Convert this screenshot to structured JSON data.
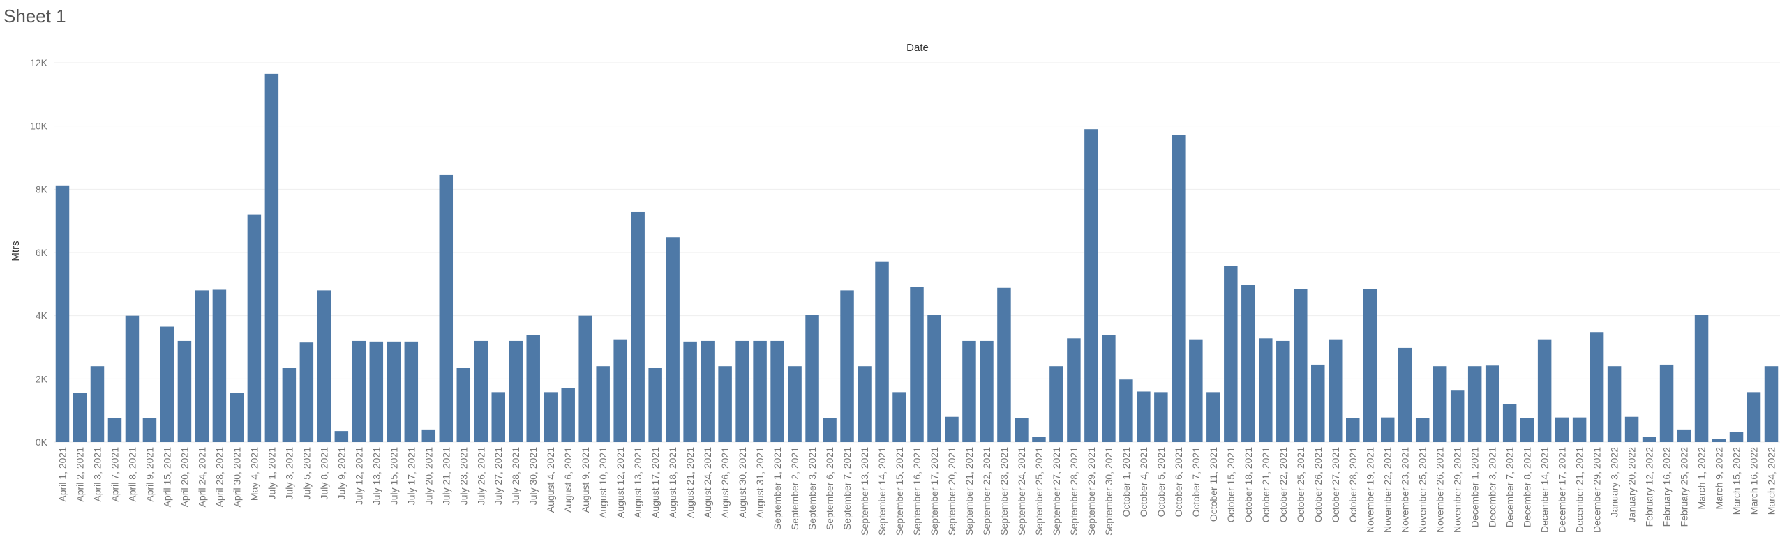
{
  "sheet": {
    "title": "Sheet 1"
  },
  "chart_data": {
    "type": "bar",
    "title": "",
    "xlabel": "Date",
    "ylabel": "Mtrs",
    "ylim": [
      0,
      12000
    ],
    "yticks": [
      {
        "value": 0,
        "label": "0K"
      },
      {
        "value": 2000,
        "label": "2K"
      },
      {
        "value": 4000,
        "label": "4K"
      },
      {
        "value": 6000,
        "label": "6K"
      },
      {
        "value": 8000,
        "label": "8K"
      },
      {
        "value": 10000,
        "label": "10K"
      },
      {
        "value": 12000,
        "label": "12K"
      }
    ],
    "bar_color": "#4e79a7",
    "grid": true,
    "categories": [
      "April 1, 2021",
      "April 2, 2021",
      "April 3, 2021",
      "April 7, 2021",
      "April 8, 2021",
      "April 9, 2021",
      "April 15, 2021",
      "April 20, 2021",
      "April 24, 2021",
      "April 28, 2021",
      "April 30, 2021",
      "May 4, 2021",
      "July 1, 2021",
      "July 3, 2021",
      "July 5, 2021",
      "July 8, 2021",
      "July 9, 2021",
      "July 12, 2021",
      "July 13, 2021",
      "July 15, 2021",
      "July 17, 2021",
      "July 20, 2021",
      "July 21, 2021",
      "July 23, 2021",
      "July 26, 2021",
      "July 27, 2021",
      "July 28, 2021",
      "July 30, 2021",
      "August 4, 2021",
      "August 6, 2021",
      "August 9, 2021",
      "August 10, 2021",
      "August 12, 2021",
      "August 13, 2021",
      "August 17, 2021",
      "August 18, 2021",
      "August 21, 2021",
      "August 24, 2021",
      "August 26, 2021",
      "August 30, 2021",
      "August 31, 2021",
      "September 1, 2021",
      "September 2, 2021",
      "September 3, 2021",
      "September 6, 2021",
      "September 7, 2021",
      "September 13, 2021",
      "September 14, 2021",
      "September 15, 2021",
      "September 16, 2021",
      "September 17, 2021",
      "September 20, 2021",
      "September 21, 2021",
      "September 22, 2021",
      "September 23, 2021",
      "September 24, 2021",
      "September 25, 2021",
      "September 27, 2021",
      "September 28, 2021",
      "September 29, 2021",
      "September 30, 2021",
      "October 1, 2021",
      "October 4, 2021",
      "October 5, 2021",
      "October 6, 2021",
      "October 7, 2021",
      "October 11, 2021",
      "October 15, 2021",
      "October 18, 2021",
      "October 21, 2021",
      "October 22, 2021",
      "October 25, 2021",
      "October 26, 2021",
      "October 27, 2021",
      "October 28, 2021",
      "November 19, 2021",
      "November 22, 2021",
      "November 23, 2021",
      "November 25, 2021",
      "November 26, 2021",
      "November 29, 2021",
      "December 1, 2021",
      "December 3, 2021",
      "December 7, 2021",
      "December 8, 2021",
      "December 14, 2021",
      "December 17, 2021",
      "December 21, 2021",
      "December 29, 2021",
      "January 3, 2022",
      "January 20, 2022",
      "February 12, 2022",
      "February 16, 2022",
      "February 25, 2022",
      "March 1, 2022",
      "March 9, 2022",
      "March 15, 2022",
      "March 16, 2022",
      "March 24, 2022"
    ],
    "values": [
      8100,
      1550,
      2400,
      750,
      4000,
      750,
      3650,
      3200,
      4800,
      4820,
      1550,
      7200,
      11650,
      2350,
      3150,
      4800,
      350,
      3200,
      3180,
      3180,
      3180,
      400,
      8450,
      2350,
      3200,
      1580,
      3200,
      3380,
      1580,
      1720,
      4000,
      2400,
      3250,
      7280,
      2350,
      6480,
      3180,
      3200,
      2400,
      3200,
      3200,
      3200,
      2400,
      4020,
      750,
      4800,
      2400,
      5720,
      1580,
      4900,
      4020,
      800,
      3200,
      3200,
      4880,
      750,
      170,
      2400,
      3280,
      9900,
      3380,
      1980,
      1600,
      1580,
      9720,
      3250,
      1580,
      5560,
      4980,
      3280,
      3200,
      4850,
      2450,
      3250,
      750,
      4850,
      780,
      2980,
      750,
      2400,
      1650,
      2400,
      2420,
      1200,
      750,
      3250,
      780,
      780,
      3480,
      2400,
      800,
      170,
      2450,
      400,
      4020,
      100,
      320,
      1580,
      2400
    ]
  }
}
